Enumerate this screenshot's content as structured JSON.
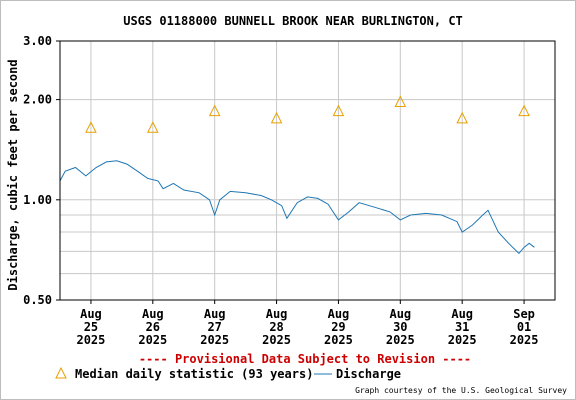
{
  "chart_data": {
    "type": "line",
    "title": "USGS 01188000 BUNNELL BROOK NEAR BURLINGTON, CT",
    "ylabel": "Discharge, cubic feet per second",
    "y_scale": "log",
    "ylim": [
      0.5,
      3.0
    ],
    "yticks": [
      {
        "value": 0.5,
        "label": "0.50"
      },
      {
        "value": 1.0,
        "label": "1.00"
      },
      {
        "value": 2.0,
        "label": "2.00"
      },
      {
        "value": 3.0,
        "label": "3.00"
      }
    ],
    "xlim": [
      "2025-08-24T12:00",
      "2025-09-01T12:00"
    ],
    "xticks": [
      {
        "date": "2025-08-25T00:00",
        "lines": [
          "Aug",
          "25",
          "2025"
        ]
      },
      {
        "date": "2025-08-26T00:00",
        "lines": [
          "Aug",
          "26",
          "2025"
        ]
      },
      {
        "date": "2025-08-27T00:00",
        "lines": [
          "Aug",
          "27",
          "2025"
        ]
      },
      {
        "date": "2025-08-28T00:00",
        "lines": [
          "Aug",
          "28",
          "2025"
        ]
      },
      {
        "date": "2025-08-29T00:00",
        "lines": [
          "Aug",
          "29",
          "2025"
        ]
      },
      {
        "date": "2025-08-30T00:00",
        "lines": [
          "Aug",
          "30",
          "2025"
        ]
      },
      {
        "date": "2025-08-31T00:00",
        "lines": [
          "Aug",
          "31",
          "2025"
        ]
      },
      {
        "date": "2025-09-01T00:00",
        "lines": [
          "Sep",
          "01",
          "2025"
        ]
      }
    ],
    "grid": true,
    "series": [
      {
        "name": "Median daily statistic (93 years)",
        "marker": "triangle",
        "color": "#e8a000",
        "points": [
          {
            "x": "2025-08-25T00:00",
            "y": 1.64
          },
          {
            "x": "2025-08-26T00:00",
            "y": 1.64
          },
          {
            "x": "2025-08-27T00:00",
            "y": 1.84
          },
          {
            "x": "2025-08-28T00:00",
            "y": 1.75
          },
          {
            "x": "2025-08-29T00:00",
            "y": 1.84
          },
          {
            "x": "2025-08-30T00:00",
            "y": 1.96
          },
          {
            "x": "2025-08-31T00:00",
            "y": 1.75
          },
          {
            "x": "2025-09-01T00:00",
            "y": 1.84
          }
        ]
      },
      {
        "name": "Discharge",
        "marker": "line",
        "color": "#1f77b4",
        "points": [
          {
            "x": "2025-08-24T12:00",
            "y": 1.14
          },
          {
            "x": "2025-08-24T14:00",
            "y": 1.22
          },
          {
            "x": "2025-08-24T18:00",
            "y": 1.25
          },
          {
            "x": "2025-08-24T22:00",
            "y": 1.18
          },
          {
            "x": "2025-08-25T02:00",
            "y": 1.25
          },
          {
            "x": "2025-08-25T06:00",
            "y": 1.3
          },
          {
            "x": "2025-08-25T10:00",
            "y": 1.31
          },
          {
            "x": "2025-08-25T14:00",
            "y": 1.28
          },
          {
            "x": "2025-08-25T18:00",
            "y": 1.22
          },
          {
            "x": "2025-08-25T22:00",
            "y": 1.16
          },
          {
            "x": "2025-08-26T02:00",
            "y": 1.14
          },
          {
            "x": "2025-08-26T04:00",
            "y": 1.08
          },
          {
            "x": "2025-08-26T08:00",
            "y": 1.12
          },
          {
            "x": "2025-08-26T12:00",
            "y": 1.07
          },
          {
            "x": "2025-08-26T18:00",
            "y": 1.05
          },
          {
            "x": "2025-08-26T22:00",
            "y": 1.0
          },
          {
            "x": "2025-08-27T00:00",
            "y": 0.9
          },
          {
            "x": "2025-08-27T02:00",
            "y": 1.0
          },
          {
            "x": "2025-08-27T06:00",
            "y": 1.06
          },
          {
            "x": "2025-08-27T12:00",
            "y": 1.05
          },
          {
            "x": "2025-08-27T18:00",
            "y": 1.03
          },
          {
            "x": "2025-08-27T22:00",
            "y": 1.0
          },
          {
            "x": "2025-08-28T02:00",
            "y": 0.96
          },
          {
            "x": "2025-08-28T04:00",
            "y": 0.88
          },
          {
            "x": "2025-08-28T08:00",
            "y": 0.98
          },
          {
            "x": "2025-08-28T12:00",
            "y": 1.02
          },
          {
            "x": "2025-08-28T16:00",
            "y": 1.01
          },
          {
            "x": "2025-08-28T20:00",
            "y": 0.97
          },
          {
            "x": "2025-08-29T00:00",
            "y": 0.87
          },
          {
            "x": "2025-08-29T04:00",
            "y": 0.92
          },
          {
            "x": "2025-08-29T08:00",
            "y": 0.98
          },
          {
            "x": "2025-08-29T14:00",
            "y": 0.95
          },
          {
            "x": "2025-08-29T20:00",
            "y": 0.92
          },
          {
            "x": "2025-08-30T00:00",
            "y": 0.87
          },
          {
            "x": "2025-08-30T04:00",
            "y": 0.9
          },
          {
            "x": "2025-08-30T10:00",
            "y": 0.91
          },
          {
            "x": "2025-08-30T16:00",
            "y": 0.9
          },
          {
            "x": "2025-08-30T22:00",
            "y": 0.86
          },
          {
            "x": "2025-08-31T00:00",
            "y": 0.8
          },
          {
            "x": "2025-08-31T04:00",
            "y": 0.84
          },
          {
            "x": "2025-08-31T08:00",
            "y": 0.9
          },
          {
            "x": "2025-08-31T10:00",
            "y": 0.93
          },
          {
            "x": "2025-08-31T14:00",
            "y": 0.8
          },
          {
            "x": "2025-08-31T18:00",
            "y": 0.74
          },
          {
            "x": "2025-08-31T22:00",
            "y": 0.69
          },
          {
            "x": "2025-09-01T00:00",
            "y": 0.72
          },
          {
            "x": "2025-09-01T02:00",
            "y": 0.74
          },
          {
            "x": "2025-09-01T04:00",
            "y": 0.72
          }
        ]
      }
    ]
  },
  "provisional_notice": "---- Provisional Data Subject to Revision ----",
  "credit": "Graph courtesy of the U.S. Geological Survey",
  "colors": {
    "notice": "#cc0000",
    "axis": "#000000",
    "grid": "#c8c8c8"
  }
}
